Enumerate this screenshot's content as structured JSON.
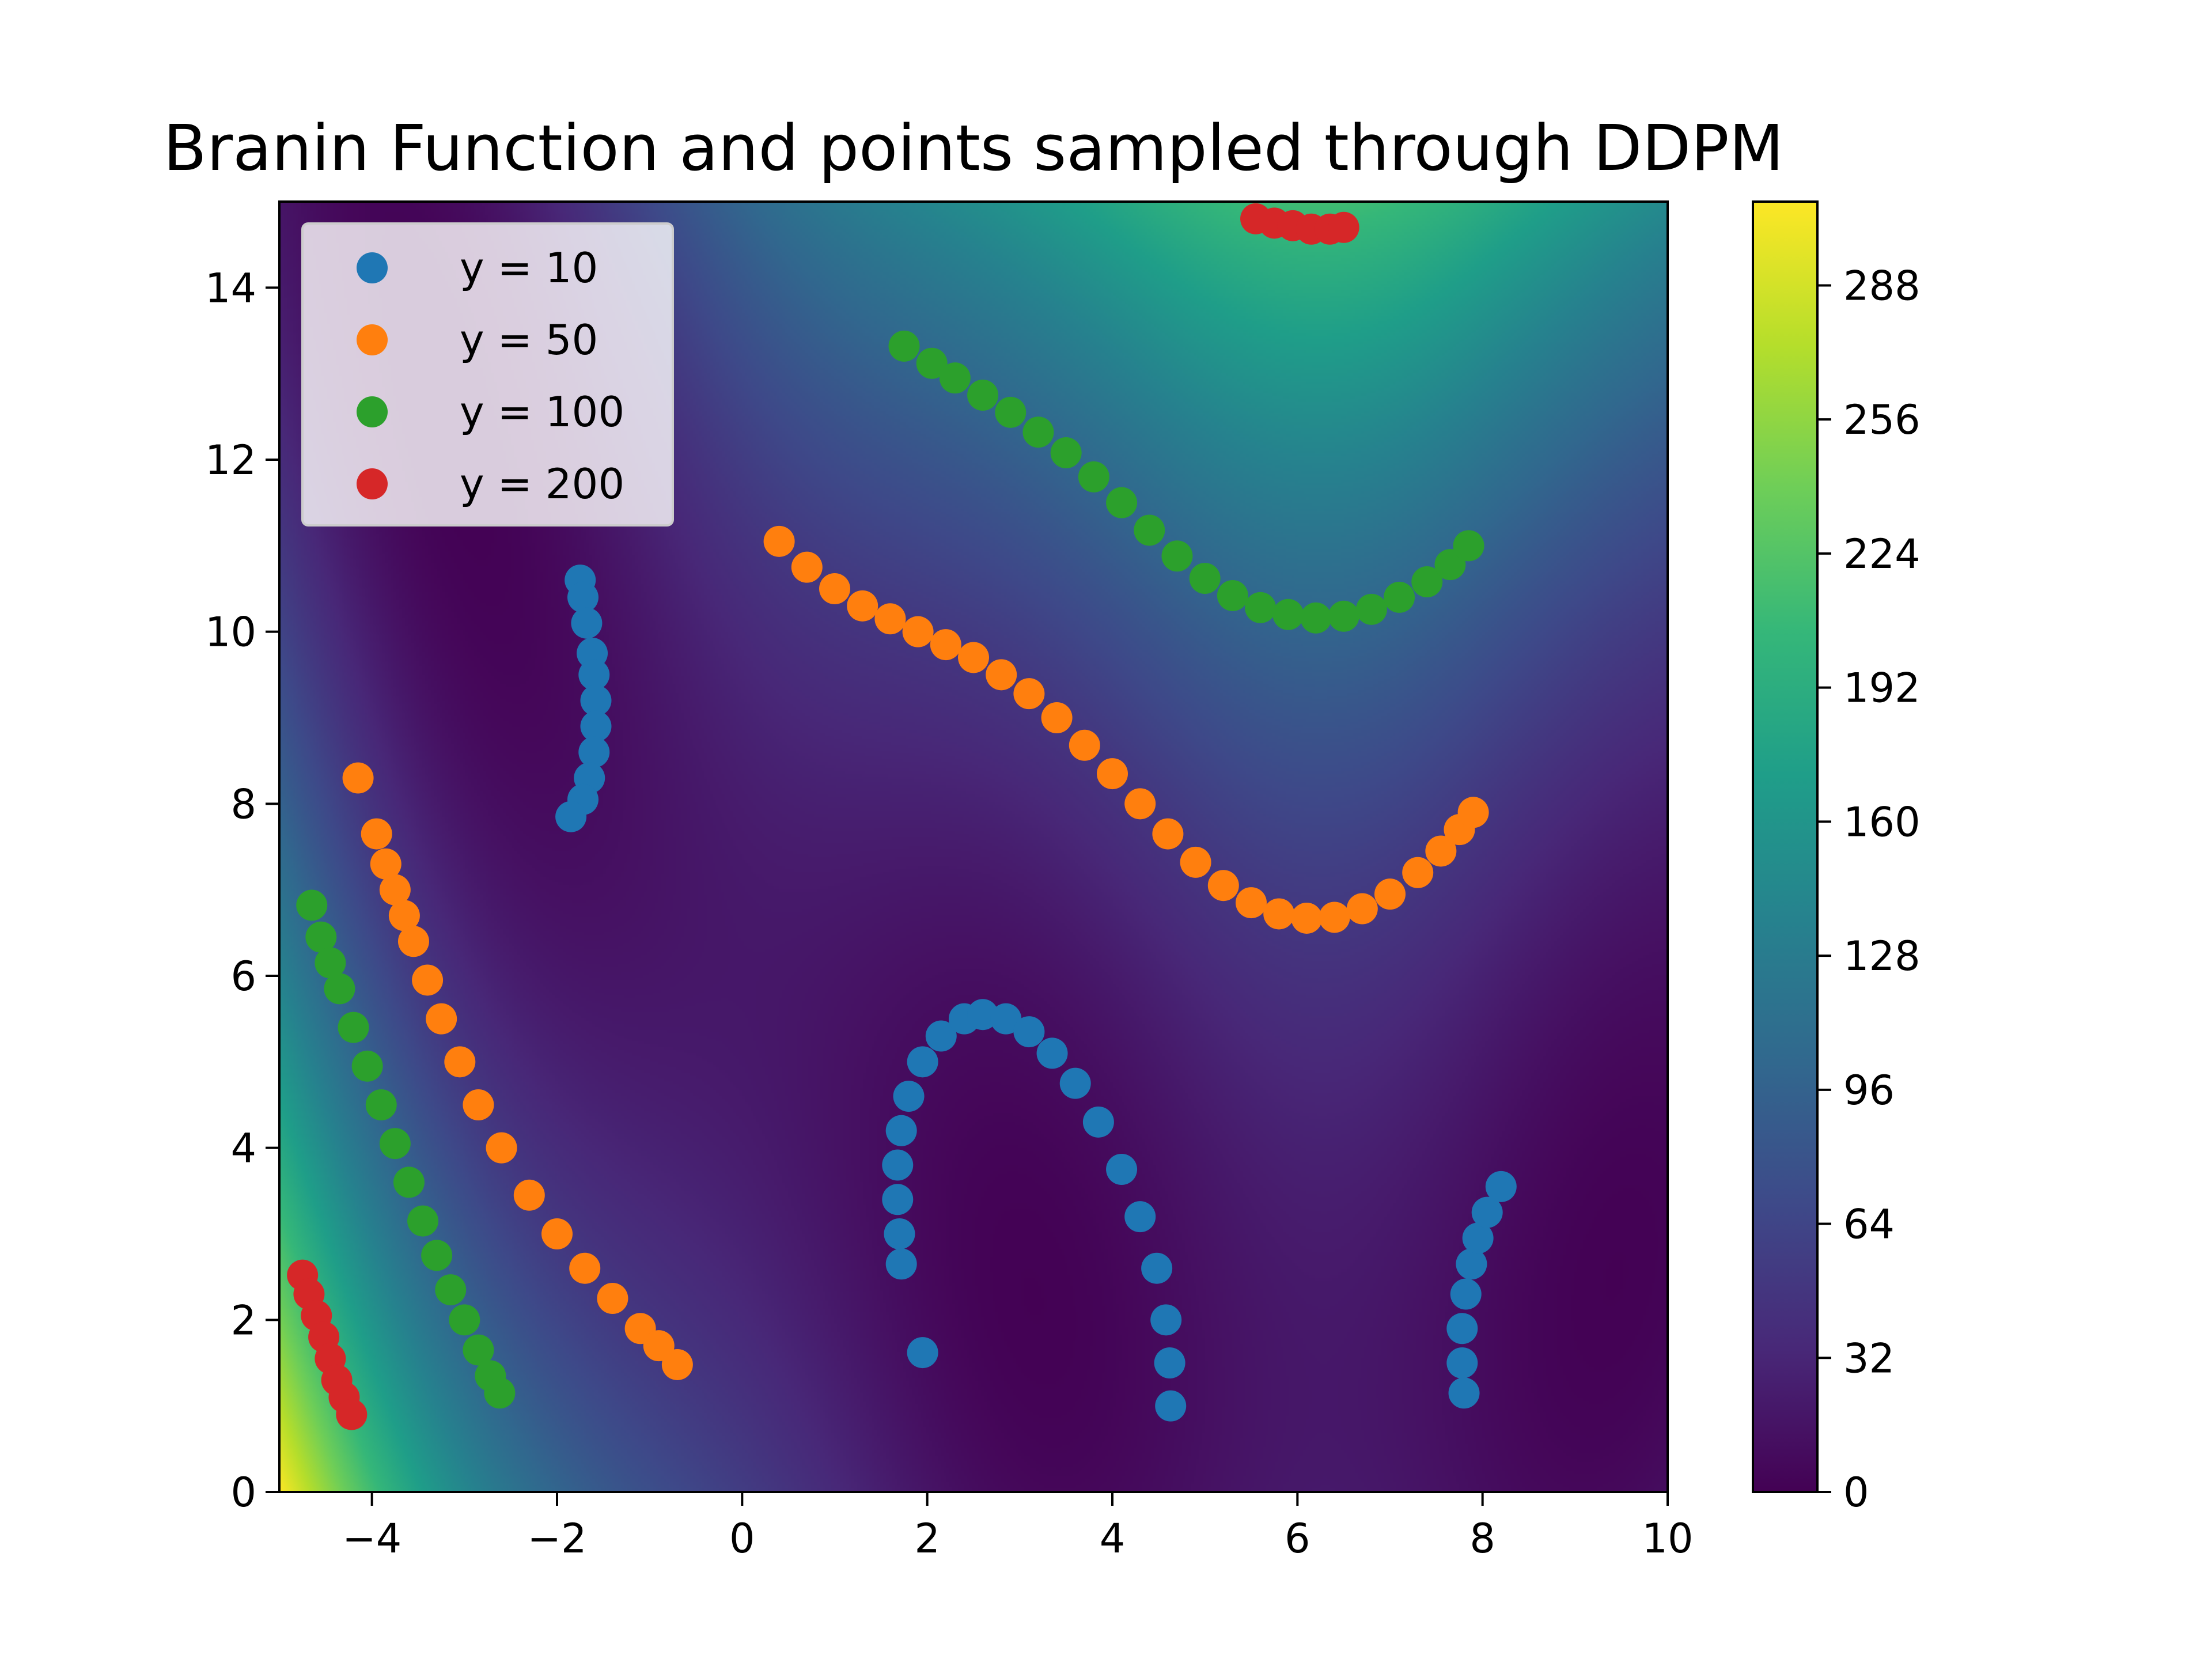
{
  "chart_data": {
    "type": "scatter",
    "title": "Branin Function and points sampled through DDPM",
    "xlabel": "",
    "ylabel": "",
    "xlim": [
      -5,
      10
    ],
    "ylim": [
      0,
      15
    ],
    "xticks": [
      -4,
      -2,
      0,
      2,
      4,
      6,
      8,
      10
    ],
    "yticks": [
      0,
      2,
      4,
      6,
      8,
      10,
      12,
      14
    ],
    "xtick_labels": [
      "−4",
      "−2",
      "0",
      "2",
      "4",
      "6",
      "8",
      "10"
    ],
    "ytick_labels": [
      "0",
      "2",
      "4",
      "6",
      "8",
      "10",
      "12",
      "14"
    ],
    "grid": false,
    "legend_position": "top-left",
    "background": {
      "function": "branin",
      "colormap": "viridis",
      "colorbar": {
        "min": 0,
        "max": 308,
        "ticks": [
          0,
          32,
          64,
          96,
          128,
          160,
          192,
          224,
          256,
          288
        ],
        "tick_labels": [
          "0",
          "32",
          "64",
          "96",
          "128",
          "160",
          "192",
          "224",
          "256",
          "288"
        ]
      }
    },
    "series": [
      {
        "name": "y = 10",
        "color": "#1f77b4",
        "points": [
          [
            -1.75,
            10.6
          ],
          [
            -1.72,
            10.4
          ],
          [
            -1.68,
            10.1
          ],
          [
            -1.62,
            9.75
          ],
          [
            -1.6,
            9.5
          ],
          [
            -1.58,
            9.2
          ],
          [
            -1.58,
            8.9
          ],
          [
            -1.6,
            8.6
          ],
          [
            -1.65,
            8.3
          ],
          [
            -1.72,
            8.05
          ],
          [
            -1.85,
            7.85
          ],
          [
            1.72,
            2.65
          ],
          [
            1.7,
            3.0
          ],
          [
            1.68,
            3.4
          ],
          [
            1.68,
            3.8
          ],
          [
            1.72,
            4.2
          ],
          [
            1.8,
            4.6
          ],
          [
            1.95,
            5.0
          ],
          [
            2.15,
            5.3
          ],
          [
            2.4,
            5.5
          ],
          [
            2.6,
            5.55
          ],
          [
            2.85,
            5.5
          ],
          [
            3.1,
            5.35
          ],
          [
            3.35,
            5.1
          ],
          [
            3.6,
            4.75
          ],
          [
            3.85,
            4.3
          ],
          [
            4.1,
            3.75
          ],
          [
            4.3,
            3.2
          ],
          [
            4.48,
            2.6
          ],
          [
            4.58,
            2.0
          ],
          [
            4.62,
            1.5
          ],
          [
            4.63,
            1.0
          ],
          [
            1.95,
            1.62
          ],
          [
            7.8,
            1.15
          ],
          [
            7.78,
            1.5
          ],
          [
            7.78,
            1.9
          ],
          [
            7.82,
            2.3
          ],
          [
            7.88,
            2.65
          ],
          [
            7.95,
            2.95
          ],
          [
            8.05,
            3.25
          ],
          [
            8.2,
            3.55
          ]
        ]
      },
      {
        "name": "y = 50",
        "color": "#ff7f0e",
        "points": [
          [
            -4.15,
            8.3
          ],
          [
            -3.95,
            7.65
          ],
          [
            -3.85,
            7.3
          ],
          [
            -3.75,
            7.0
          ],
          [
            -3.65,
            6.7
          ],
          [
            -3.55,
            6.4
          ],
          [
            -3.4,
            5.95
          ],
          [
            -3.25,
            5.5
          ],
          [
            -3.05,
            5.0
          ],
          [
            -2.85,
            4.5
          ],
          [
            -2.6,
            4.0
          ],
          [
            -2.3,
            3.45
          ],
          [
            -2.0,
            3.0
          ],
          [
            -1.7,
            2.6
          ],
          [
            -1.4,
            2.25
          ],
          [
            -1.1,
            1.9
          ],
          [
            -0.9,
            1.7
          ],
          [
            -0.7,
            1.48
          ],
          [
            0.4,
            11.05
          ],
          [
            0.7,
            10.75
          ],
          [
            1.0,
            10.5
          ],
          [
            1.3,
            10.3
          ],
          [
            1.6,
            10.15
          ],
          [
            1.9,
            10.0
          ],
          [
            2.2,
            9.85
          ],
          [
            2.5,
            9.7
          ],
          [
            2.8,
            9.5
          ],
          [
            3.1,
            9.28
          ],
          [
            3.4,
            9.0
          ],
          [
            3.7,
            8.68
          ],
          [
            4.0,
            8.35
          ],
          [
            4.3,
            8.0
          ],
          [
            4.6,
            7.65
          ],
          [
            4.9,
            7.32
          ],
          [
            5.2,
            7.05
          ],
          [
            5.5,
            6.85
          ],
          [
            5.8,
            6.72
          ],
          [
            6.1,
            6.67
          ],
          [
            6.4,
            6.68
          ],
          [
            6.7,
            6.78
          ],
          [
            7.0,
            6.95
          ],
          [
            7.3,
            7.2
          ],
          [
            7.55,
            7.45
          ],
          [
            7.75,
            7.7
          ],
          [
            7.9,
            7.9
          ]
        ]
      },
      {
        "name": "y = 100",
        "color": "#2ca02c",
        "points": [
          [
            -4.65,
            6.82
          ],
          [
            -4.55,
            6.45
          ],
          [
            -4.45,
            6.15
          ],
          [
            -4.35,
            5.85
          ],
          [
            -4.2,
            5.4
          ],
          [
            -4.05,
            4.95
          ],
          [
            -3.9,
            4.5
          ],
          [
            -3.75,
            4.05
          ],
          [
            -3.6,
            3.6
          ],
          [
            -3.45,
            3.15
          ],
          [
            -3.3,
            2.75
          ],
          [
            -3.15,
            2.35
          ],
          [
            -3.0,
            2.0
          ],
          [
            -2.85,
            1.65
          ],
          [
            -2.72,
            1.35
          ],
          [
            -2.62,
            1.15
          ],
          [
            1.75,
            13.32
          ],
          [
            2.05,
            13.12
          ],
          [
            2.3,
            12.95
          ],
          [
            2.6,
            12.75
          ],
          [
            2.9,
            12.55
          ],
          [
            3.2,
            12.32
          ],
          [
            3.5,
            12.08
          ],
          [
            3.8,
            11.8
          ],
          [
            4.1,
            11.5
          ],
          [
            4.4,
            11.18
          ],
          [
            4.7,
            10.88
          ],
          [
            5.0,
            10.62
          ],
          [
            5.3,
            10.42
          ],
          [
            5.6,
            10.28
          ],
          [
            5.9,
            10.2
          ],
          [
            6.2,
            10.16
          ],
          [
            6.5,
            10.18
          ],
          [
            6.8,
            10.26
          ],
          [
            7.1,
            10.4
          ],
          [
            7.4,
            10.58
          ],
          [
            7.65,
            10.78
          ],
          [
            7.85,
            11.0
          ]
        ]
      },
      {
        "name": "y = 200",
        "color": "#d62728",
        "points": [
          [
            -4.75,
            2.52
          ],
          [
            -4.68,
            2.3
          ],
          [
            -4.6,
            2.05
          ],
          [
            -4.52,
            1.8
          ],
          [
            -4.45,
            1.55
          ],
          [
            -4.38,
            1.3
          ],
          [
            -4.3,
            1.1
          ],
          [
            -4.22,
            0.9
          ],
          [
            5.55,
            14.8
          ],
          [
            5.75,
            14.75
          ],
          [
            5.95,
            14.72
          ],
          [
            6.15,
            14.68
          ],
          [
            6.35,
            14.68
          ],
          [
            6.5,
            14.7
          ]
        ]
      }
    ]
  }
}
